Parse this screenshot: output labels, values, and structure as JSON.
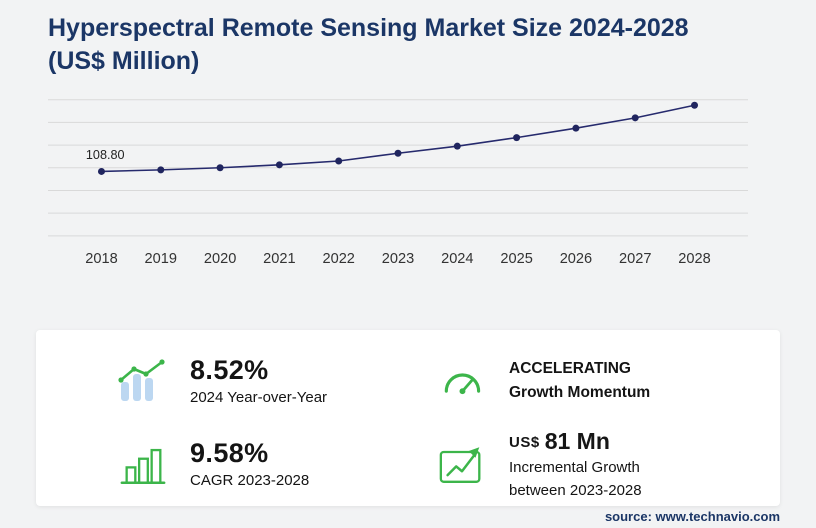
{
  "title": "Hyperspectral Remote Sensing Market Size 2024-2028 (US$ Million)",
  "colors": {
    "navy": "#1b3666",
    "accent_green": "#3cb54a",
    "line": "#262a6d",
    "marker": "#20255f",
    "gridline": "#d9d9d9",
    "bar_blue": "#bcd7f1"
  },
  "chart_data": {
    "type": "line",
    "title": "Hyperspectral Remote Sensing Market Size 2024-2028 (US$ Million)",
    "x": [
      "2018",
      "2019",
      "2020",
      "2021",
      "2022",
      "2023",
      "2024",
      "2025",
      "2026",
      "2027",
      "2028"
    ],
    "series": [
      {
        "name": "Market Size (US$ Million)",
        "values": [
          108.8,
          111.5,
          115.0,
          120.0,
          126.5,
          139.6,
          151.5,
          166.0,
          181.9,
          199.4,
          220.6
        ]
      }
    ],
    "point_label": {
      "x": "2018",
      "text": "108.80"
    },
    "ylim": [
      0,
      230
    ],
    "gridlines": 7,
    "grid": true,
    "legend": false,
    "line_color": "#262a6d",
    "marker_color": "#20255f"
  },
  "stats": {
    "yoy": {
      "value": "8.52%",
      "label": "2024 Year-over-Year"
    },
    "momentum": {
      "line1": "ACCELERATING",
      "line2": "Growth Momentum"
    },
    "cagr": {
      "value": "9.58%",
      "label": "CAGR 2023-2028"
    },
    "incremental": {
      "currency": "US$",
      "value": "81 Mn",
      "label_line1": "Incremental Growth",
      "label_line2": "between 2023-2028"
    }
  },
  "source": "source: www.technavio.com"
}
